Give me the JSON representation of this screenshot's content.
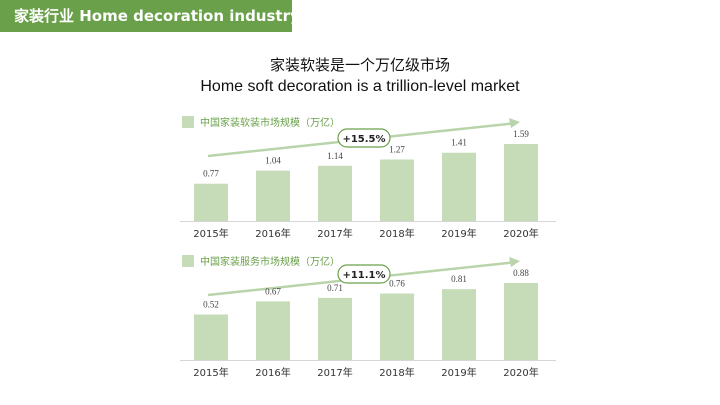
{
  "header": {
    "section_title": "家装行业 Home decoration industry",
    "headline_cn": "家装软装是一个万亿级市场",
    "headline_en": "Home soft decoration is a trillion-level market"
  },
  "colors": {
    "header_bg": "#6aa04a",
    "bar_fill": "#c6dcb9",
    "arrow": "#b9d4aa",
    "badge_border": "#6aa04a"
  },
  "chart_data": [
    {
      "type": "bar",
      "legend": "中国家装软装市场规模（万亿）",
      "growth_label": "+15.5%",
      "categories": [
        "2015年",
        "2016年",
        "2017年",
        "2018年",
        "2019年",
        "2020年"
      ],
      "values": [
        0.77,
        1.04,
        1.14,
        1.27,
        1.41,
        1.59
      ],
      "value_labels": [
        "0.77",
        "1.04",
        "1.14",
        "1.27",
        "1.41",
        "1.59"
      ],
      "ylim": [
        0,
        1.75
      ],
      "grid": false
    },
    {
      "type": "bar",
      "legend": "中国家装服务市场规模（万亿）",
      "growth_label": "+11.1%",
      "categories": [
        "2015年",
        "2016年",
        "2017年",
        "2018年",
        "2019年",
        "2020年"
      ],
      "values": [
        0.52,
        0.67,
        0.71,
        0.76,
        0.81,
        0.88
      ],
      "value_labels": [
        "0.52",
        "0.67",
        "0.71",
        "0.76",
        "0.81",
        "0.88"
      ],
      "ylim": [
        0,
        0.97
      ],
      "grid": false
    }
  ]
}
